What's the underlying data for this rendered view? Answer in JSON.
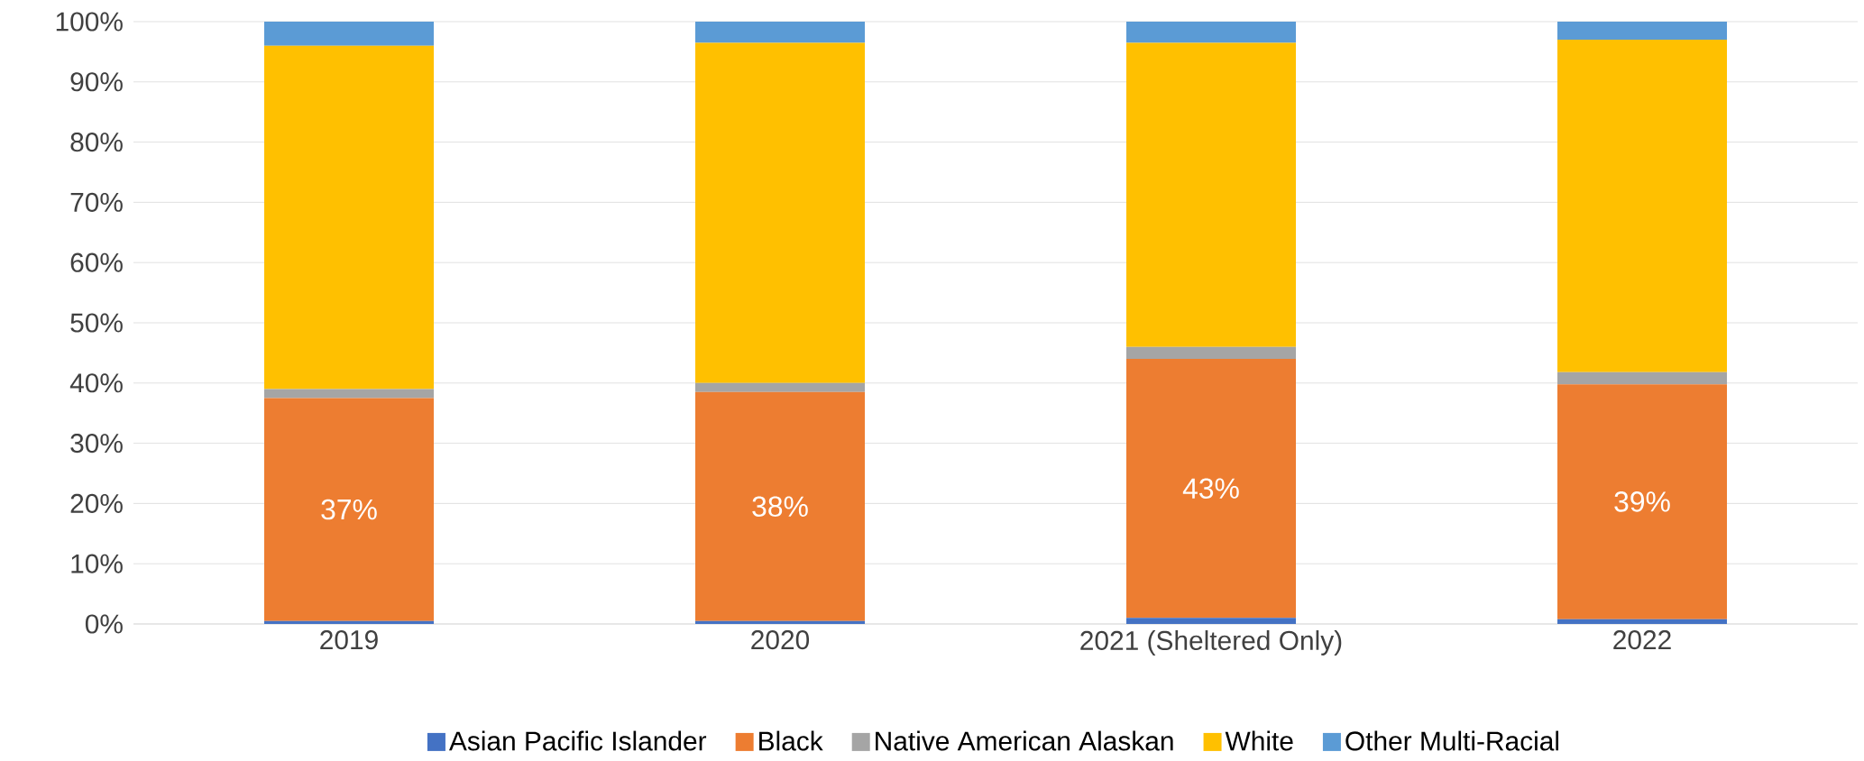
{
  "chart_data": {
    "type": "bar",
    "stacked": true,
    "categories": [
      "2019",
      "2020",
      "2021 (Sheltered Only)",
      "2022"
    ],
    "series": [
      {
        "name": "Asian Pacific Islander",
        "color": "#4472c4",
        "values": [
          0.5,
          0.5,
          1,
          0.8
        ]
      },
      {
        "name": "Black",
        "color": "#ed7d31",
        "values": [
          37,
          38,
          43,
          39
        ],
        "value_labels": [
          "37%",
          "38%",
          "43%",
          "39%"
        ]
      },
      {
        "name": "Native American Alaskan",
        "color": "#a5a5a5",
        "values": [
          1.5,
          1.5,
          2,
          2
        ]
      },
      {
        "name": "White",
        "color": "#ffc000",
        "values": [
          57,
          56.5,
          50.5,
          55.2
        ]
      },
      {
        "name": "Other Multi-Racial",
        "color": "#5b9bd5",
        "values": [
          4,
          3.5,
          3.5,
          3
        ]
      }
    ],
    "ylim": [
      0,
      100
    ],
    "yticks": [
      {
        "value": 0,
        "label": "0%"
      },
      {
        "value": 10,
        "label": "10%"
      },
      {
        "value": 20,
        "label": "20%"
      },
      {
        "value": 30,
        "label": "30%"
      },
      {
        "value": 40,
        "label": "40%"
      },
      {
        "value": 50,
        "label": "50%"
      },
      {
        "value": 60,
        "label": "60%"
      },
      {
        "value": 70,
        "label": "70%"
      },
      {
        "value": 80,
        "label": "80%"
      },
      {
        "value": 90,
        "label": "90%"
      },
      {
        "value": 100,
        "label": "100%"
      }
    ],
    "grid": "y",
    "legend": "bottom"
  }
}
